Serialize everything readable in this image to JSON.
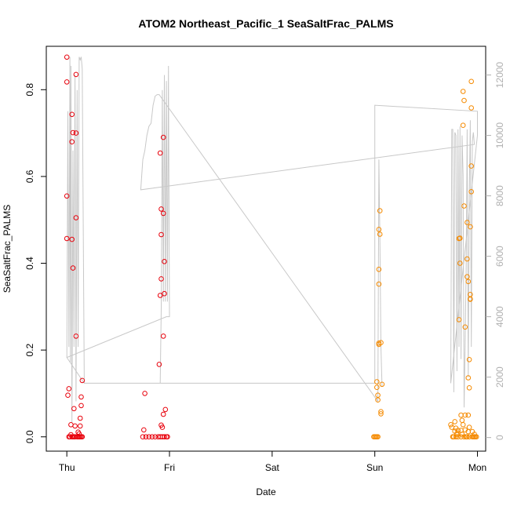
{
  "chart_data": {
    "type": "scatter",
    "title": "ATOM2 Northeast_Pacific_1 SeaSaltFrac_PALMS",
    "xlabel": "Date",
    "ylabel": "SeaSaltFrac_PALMS",
    "x_ticks": [
      "Thu",
      "Fri",
      "Sat",
      "Sun",
      "Mon"
    ],
    "y_ticks": [
      "0.0",
      "0.2",
      "0.4",
      "0.6",
      "0.8"
    ],
    "y2_ticks": [
      "0",
      "2000",
      "4000",
      "6000",
      "8000",
      "10000",
      "12000"
    ],
    "xlim": [
      -0.2,
      4.08
    ],
    "ylim": [
      -0.033,
      0.9
    ],
    "y2lim": [
      -450,
      12950
    ],
    "colors": {
      "red": "#e8000b",
      "orange": "#f58a00",
      "gray": "#c8c8c8",
      "axis": "#000000",
      "axis_right": "#b0b0b0"
    },
    "series": [
      {
        "color": "red",
        "points": [
          [
            0.0,
            0.875
          ],
          [
            0.0,
            0.818
          ],
          [
            0.0,
            0.555
          ],
          [
            0.0,
            0.457
          ],
          [
            0.02,
            0.111
          ],
          [
            0.01,
            0.096
          ],
          [
            0.03,
            0.0
          ],
          [
            0.05,
            0.0
          ],
          [
            0.04,
            0.028
          ],
          [
            0.04,
            0.005
          ],
          [
            0.05,
            0.743
          ],
          [
            0.05,
            0.68
          ],
          [
            0.06,
            0.701
          ],
          [
            0.05,
            0.455
          ],
          [
            0.06,
            0.389
          ],
          [
            0.07,
            0.065
          ],
          [
            0.08,
            0.025
          ],
          [
            0.08,
            0.0
          ],
          [
            0.09,
            0.7
          ],
          [
            0.09,
            0.835
          ],
          [
            0.09,
            0.505
          ],
          [
            0.09,
            0.232
          ],
          [
            0.1,
            0.0
          ],
          [
            0.11,
            0.011
          ],
          [
            0.12,
            0.0
          ],
          [
            0.13,
            0.0
          ],
          [
            0.13,
            0.025
          ],
          [
            0.13,
            0.043
          ],
          [
            0.14,
            0.072
          ],
          [
            0.14,
            0.092
          ],
          [
            0.15,
            0.13
          ],
          [
            0.15,
            0.0
          ],
          [
            0.02,
            0.0
          ],
          [
            0.06,
            0.0
          ],
          [
            0.07,
            0.0
          ],
          [
            0.11,
            0.0
          ],
          [
            0.14,
            0.0
          ],
          [
            0.12,
            0.007
          ],
          [
            0.74,
            0.0
          ],
          [
            0.75,
            0.016
          ],
          [
            0.76,
            0.1
          ],
          [
            0.77,
            0.0
          ],
          [
            0.8,
            0.0
          ],
          [
            0.83,
            0.0
          ],
          [
            0.86,
            0.0
          ],
          [
            0.89,
            0.0
          ],
          [
            0.9,
            0.167
          ],
          [
            0.91,
            0.654
          ],
          [
            0.92,
            0.525
          ],
          [
            0.92,
            0.466
          ],
          [
            0.92,
            0.364
          ],
          [
            0.91,
            0.326
          ],
          [
            0.92,
            0.027
          ],
          [
            0.93,
            0.022
          ],
          [
            0.94,
            0.232
          ],
          [
            0.94,
            0.69
          ],
          [
            0.94,
            0.515
          ],
          [
            0.95,
            0.404
          ],
          [
            0.95,
            0.33
          ],
          [
            0.94,
            0.052
          ],
          [
            0.96,
            0.063
          ],
          [
            0.97,
            0.0
          ],
          [
            0.98,
            0.0
          ],
          [
            0.93,
            0.0
          ],
          [
            0.95,
            0.0
          ],
          [
            0.91,
            0.0
          ]
        ]
      },
      {
        "color": "orange",
        "points": [
          [
            2.99,
            0.0
          ],
          [
            3.0,
            0.0
          ],
          [
            3.01,
            0.0
          ],
          [
            3.02,
            0.0
          ],
          [
            3.03,
            0.0
          ],
          [
            3.02,
            0.114
          ],
          [
            3.02,
            0.127
          ],
          [
            3.03,
            0.096
          ],
          [
            3.03,
            0.085
          ],
          [
            3.04,
            0.213
          ],
          [
            3.04,
            0.216
          ],
          [
            3.04,
            0.352
          ],
          [
            3.04,
            0.386
          ],
          [
            3.04,
            0.478
          ],
          [
            3.05,
            0.467
          ],
          [
            3.05,
            0.521
          ],
          [
            3.06,
            0.217
          ],
          [
            3.06,
            0.058
          ],
          [
            3.06,
            0.053
          ],
          [
            3.07,
            0.121
          ],
          [
            3.74,
            0.028
          ],
          [
            3.75,
            0.022
          ],
          [
            3.76,
            0.0
          ],
          [
            3.77,
            0.0
          ],
          [
            3.78,
            0.035
          ],
          [
            3.78,
            0.013
          ],
          [
            3.79,
            0.0
          ],
          [
            3.8,
            0.008
          ],
          [
            3.8,
            0.005
          ],
          [
            3.81,
            0.0
          ],
          [
            3.82,
            0.27
          ],
          [
            3.82,
            0.457
          ],
          [
            3.83,
            0.4
          ],
          [
            3.83,
            0.458
          ],
          [
            3.84,
            0.05
          ],
          [
            3.84,
            0.015
          ],
          [
            3.85,
            0.006
          ],
          [
            3.85,
            0.038
          ],
          [
            3.86,
            0.028
          ],
          [
            3.86,
            0.718
          ],
          [
            3.86,
            0.796
          ],
          [
            3.87,
            0.775
          ],
          [
            3.87,
            0.532
          ],
          [
            3.88,
            0.253
          ],
          [
            3.88,
            0.05
          ],
          [
            3.88,
            0.016
          ],
          [
            3.89,
            0.0
          ],
          [
            3.89,
            0.0
          ],
          [
            3.9,
            0.494
          ],
          [
            3.9,
            0.41
          ],
          [
            3.9,
            0.369
          ],
          [
            3.91,
            0.358
          ],
          [
            3.91,
            0.136
          ],
          [
            3.91,
            0.05
          ],
          [
            3.91,
            0.012
          ],
          [
            3.92,
            0.113
          ],
          [
            3.92,
            0.178
          ],
          [
            3.92,
            0.022
          ],
          [
            3.93,
            0.328
          ],
          [
            3.93,
            0.317
          ],
          [
            3.93,
            0.318
          ],
          [
            3.93,
            0.484
          ],
          [
            3.94,
            0.565
          ],
          [
            3.94,
            0.624
          ],
          [
            3.94,
            0.758
          ],
          [
            3.94,
            0.819
          ],
          [
            3.95,
            0.0
          ],
          [
            3.96,
            0.0
          ],
          [
            3.97,
            0.006
          ],
          [
            3.98,
            0.0
          ],
          [
            3.99,
            0.0
          ],
          [
            3.76,
            0.0
          ],
          [
            3.79,
            0.02
          ],
          [
            3.81,
            0.015
          ],
          [
            3.84,
            0.0
          ],
          [
            3.87,
            0.0
          ],
          [
            3.9,
            0.0
          ],
          [
            3.92,
            0.0
          ],
          [
            3.95,
            0.012
          ],
          [
            3.97,
            0.0
          ]
        ]
      }
    ],
    "altitude_line": [
      [
        0.0,
        2650
      ],
      [
        0.01,
        10800
      ],
      [
        0.02,
        3000
      ],
      [
        0.03,
        12600
      ],
      [
        0.035,
        2500
      ],
      [
        0.04,
        12300
      ],
      [
        0.05,
        500
      ],
      [
        0.06,
        9500
      ],
      [
        0.07,
        3000
      ],
      [
        0.08,
        12000
      ],
      [
        0.09,
        1200
      ],
      [
        0.1,
        11500
      ],
      [
        0.11,
        3000
      ],
      [
        0.12,
        12600
      ],
      [
        0.13,
        12500
      ],
      [
        0.14,
        12600
      ],
      [
        0.15,
        12200
      ],
      [
        0.17,
        1800
      ],
      [
        0.91,
        1800
      ],
      [
        0.92,
        4300
      ],
      [
        0.93,
        11500
      ],
      [
        0.94,
        4500
      ],
      [
        0.95,
        12000
      ],
      [
        0.96,
        4500
      ],
      [
        0.97,
        11800
      ],
      [
        0.98,
        4500
      ],
      [
        0.99,
        12300
      ],
      [
        1.0,
        4000
      ],
      [
        0.97,
        4000
      ],
      [
        0.0,
        2650
      ],
      [
        0.17,
        1800
      ],
      [
        0.17,
        1800
      ],
      [
        3.0,
        1800
      ],
      [
        3.0,
        11000
      ],
      [
        4.0,
        10800
      ],
      [
        4.0,
        10000
      ],
      [
        3.74,
        1800
      ],
      [
        3.75,
        10200
      ],
      [
        3.76,
        10200
      ],
      [
        3.77,
        1500
      ],
      [
        3.78,
        10100
      ],
      [
        3.79,
        10000
      ],
      [
        3.8,
        2200
      ],
      [
        3.81,
        10200
      ],
      [
        3.82,
        3000
      ],
      [
        3.83,
        10300
      ],
      [
        3.84,
        2600
      ],
      [
        3.85,
        10000
      ],
      [
        3.86,
        8700
      ],
      [
        3.87,
        1000
      ],
      [
        3.88,
        3000
      ],
      [
        3.89,
        5600
      ],
      [
        3.9,
        10200
      ],
      [
        3.91,
        2000
      ],
      [
        3.92,
        8000
      ],
      [
        3.93,
        10500
      ],
      [
        3.94,
        3000
      ],
      [
        3.95,
        9800
      ],
      [
        3.96,
        10100
      ],
      [
        3.97,
        9700
      ],
      [
        0.72,
        8200
      ],
      [
        0.74,
        9200
      ],
      [
        0.76,
        9500
      ],
      [
        0.78,
        10000
      ],
      [
        0.8,
        10300
      ],
      [
        0.82,
        10400
      ],
      [
        0.84,
        11000
      ],
      [
        0.86,
        11300
      ],
      [
        0.88,
        11350
      ],
      [
        0.9,
        11350
      ],
      [
        3.03,
        1200
      ],
      [
        3.04,
        9200
      ],
      [
        3.05,
        6500
      ],
      [
        3.06,
        3000
      ],
      [
        3.07,
        1700
      ]
    ]
  }
}
